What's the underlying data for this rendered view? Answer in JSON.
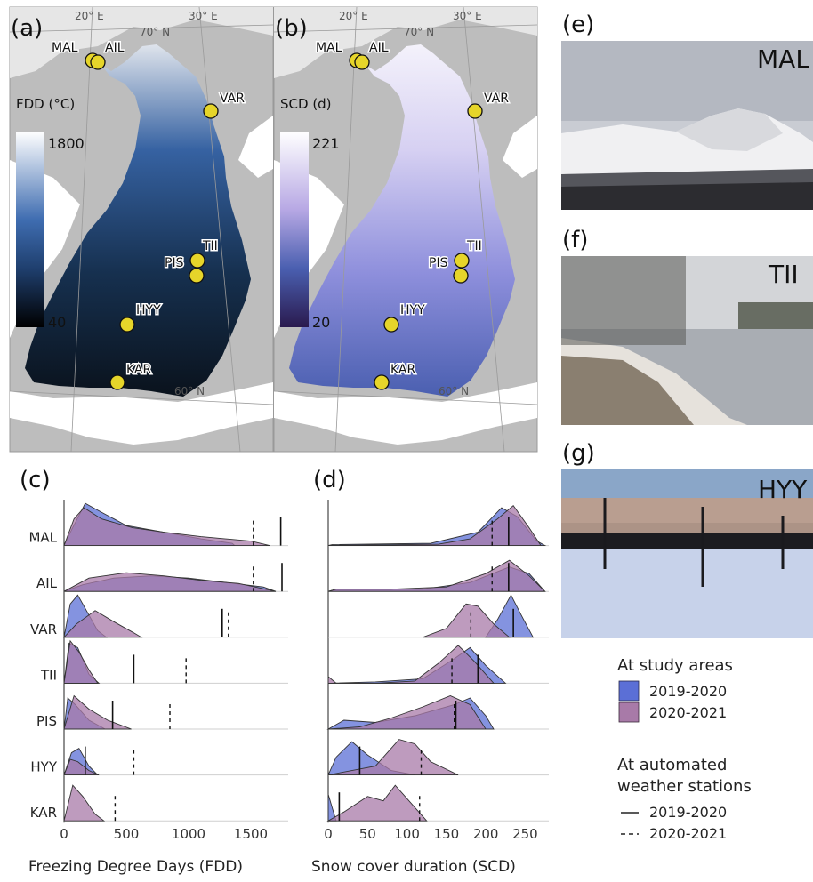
{
  "panels": {
    "a": "(a)",
    "b": "(b)",
    "c": "(c)",
    "d": "(d)",
    "e": "(e)",
    "f": "(f)",
    "g": "(g)"
  },
  "maps": {
    "lat_70": "70° N",
    "lat_60": "60° N",
    "lon_20": "20° E",
    "lon_30": "30° E",
    "fdd": {
      "title": "FDD (°C)",
      "max": "1800",
      "min": "40",
      "colors": [
        "#000000",
        "#1f3f6e",
        "#3f6db1",
        "#ffffff"
      ]
    },
    "scd": {
      "title": "SCD (d)",
      "max": "221",
      "min": "20",
      "colors": [
        "#2a1a4e",
        "#4a5fb0",
        "#b7a8e4",
        "#ffffff"
      ]
    },
    "sites": [
      "MAL",
      "AIL",
      "VAR",
      "TII",
      "PIS",
      "HYY",
      "KAR"
    ],
    "site_color": "#e6d52a",
    "land_color": "#bdbdbd",
    "sea_color": "#ffffff"
  },
  "photos": {
    "e": {
      "label": "MAL"
    },
    "f": {
      "label": "TII"
    },
    "g": {
      "label": "HYY"
    }
  },
  "legend": {
    "study_title": "At study areas",
    "study_items": [
      {
        "label": "2019-2020",
        "color": "#5b6fd6"
      },
      {
        "label": "2020-2021",
        "color": "#a87aa8"
      }
    ],
    "aws_title_1": "At automated",
    "aws_title_2": "weather stations",
    "aws_items": [
      {
        "label": "2019-2020",
        "dash": "solid"
      },
      {
        "label": "2020-2021",
        "dash": "dashed"
      }
    ]
  },
  "chart_data": [
    {
      "type": "area",
      "title": "",
      "xlabel": "Freezing Degree Days (FDD)",
      "xlim": [
        0,
        1800
      ],
      "xticks": [
        0,
        500,
        1000,
        1500
      ],
      "sites": [
        "MAL",
        "AIL",
        "VAR",
        "TII",
        "PIS",
        "HYY",
        "KAR"
      ],
      "series": [
        {
          "name": "2019-2020",
          "color": "#5b6fd6",
          "density": {
            "MAL": [
              [
                0,
                0
              ],
              [
                60,
                0.35
              ],
              [
                170,
                0.95
              ],
              [
                300,
                0.75
              ],
              [
                500,
                0.45
              ],
              [
                800,
                0.3
              ],
              [
                1100,
                0.15
              ],
              [
                1350,
                0.05
              ],
              [
                1370,
                0
              ]
            ],
            "AIL": [
              [
                0,
                0
              ],
              [
                150,
                0.15
              ],
              [
                400,
                0.3
              ],
              [
                700,
                0.35
              ],
              [
                1000,
                0.3
              ],
              [
                1300,
                0.2
              ],
              [
                1600,
                0.1
              ],
              [
                1700,
                0
              ]
            ],
            "VAR": [
              [
                0,
                0
              ],
              [
                50,
                0.75
              ],
              [
                110,
                0.95
              ],
              [
                180,
                0.6
              ],
              [
                270,
                0.15
              ],
              [
                340,
                0
              ]
            ],
            "TII": [
              [
                0,
                0
              ],
              [
                40,
                0.9
              ],
              [
                110,
                0.8
              ],
              [
                200,
                0.2
              ],
              [
                280,
                0
              ]
            ],
            "PIS": [
              [
                0,
                0
              ],
              [
                30,
                0.7
              ],
              [
                90,
                0.55
              ],
              [
                200,
                0.2
              ],
              [
                330,
                0
              ]
            ],
            "HYY": [
              [
                0,
                0
              ],
              [
                60,
                0.5
              ],
              [
                120,
                0.6
              ],
              [
                200,
                0.2
              ],
              [
                270,
                0
              ]
            ],
            "KAR": []
          }
        },
        {
          "name": "2020-2021",
          "color": "#a87aa8",
          "density": {
            "MAL": [
              [
                0,
                0
              ],
              [
                80,
                0.6
              ],
              [
                160,
                0.85
              ],
              [
                300,
                0.6
              ],
              [
                550,
                0.4
              ],
              [
                800,
                0.3
              ],
              [
                1100,
                0.2
              ],
              [
                1500,
                0.1
              ],
              [
                1650,
                0
              ]
            ],
            "AIL": [
              [
                0,
                0
              ],
              [
                200,
                0.3
              ],
              [
                500,
                0.42
              ],
              [
                800,
                0.35
              ],
              [
                1100,
                0.25
              ],
              [
                1400,
                0.18
              ],
              [
                1700,
                0
              ]
            ],
            "VAR": [
              [
                0,
                0
              ],
              [
                100,
                0.3
              ],
              [
                250,
                0.6
              ],
              [
                400,
                0.35
              ],
              [
                560,
                0.1
              ],
              [
                620,
                0
              ]
            ],
            "TII": [
              [
                0,
                0
              ],
              [
                50,
                0.95
              ],
              [
                120,
                0.7
              ],
              [
                200,
                0.3
              ],
              [
                270,
                0
              ]
            ],
            "PIS": [
              [
                0,
                0
              ],
              [
                80,
                0.75
              ],
              [
                200,
                0.45
              ],
              [
                350,
                0.2
              ],
              [
                540,
                0
              ]
            ],
            "HYY": [
              [
                0,
                0
              ],
              [
                50,
                0.35
              ],
              [
                110,
                0.3
              ],
              [
                200,
                0.1
              ],
              [
                280,
                0
              ]
            ],
            "KAR": [
              [
                0,
                0
              ],
              [
                70,
                0.8
              ],
              [
                150,
                0.55
              ],
              [
                250,
                0.15
              ],
              [
                320,
                0
              ]
            ]
          }
        }
      ],
      "station_values": {
        "2019-2020": {
          "MAL": 1740,
          "AIL": 1750,
          "VAR": 1270,
          "TII": 560,
          "PIS": 390,
          "HYY": 170,
          "KAR": null
        },
        "2020-2021": {
          "MAL": 1520,
          "AIL": 1520,
          "VAR": 1320,
          "TII": 980,
          "PIS": 850,
          "HYY": 560,
          "KAR": 410
        }
      }
    },
    {
      "type": "area",
      "title": "",
      "xlabel": "Snow cover duration (SCD)",
      "xlim": [
        0,
        280
      ],
      "xticks": [
        0,
        50,
        100,
        150,
        200,
        250
      ],
      "sites": [
        "MAL",
        "AIL",
        "VAR",
        "TII",
        "PIS",
        "HYY",
        "KAR"
      ],
      "series": [
        {
          "name": "2019-2020",
          "color": "#5b6fd6",
          "density": {
            "MAL": [
              [
                0,
                0
              ],
              [
                5,
                0.02
              ],
              [
                130,
                0.05
              ],
              [
                190,
                0.3
              ],
              [
                220,
                0.85
              ],
              [
                240,
                0.65
              ],
              [
                265,
                0.1
              ],
              [
                275,
                0
              ]
            ],
            "AIL": [
              [
                0,
                0
              ],
              [
                10,
                0.05
              ],
              [
                120,
                0.05
              ],
              [
                180,
                0.2
              ],
              [
                230,
                0.55
              ],
              [
                255,
                0.4
              ],
              [
                275,
                0
              ]
            ],
            "VAR": [
              [
                200,
                0
              ],
              [
                215,
                0.4
              ],
              [
                232,
                0.95
              ],
              [
                245,
                0.5
              ],
              [
                260,
                0
              ]
            ],
            "TII": [
              [
                0,
                0
              ],
              [
                60,
                0.03
              ],
              [
                120,
                0.1
              ],
              [
                160,
                0.55
              ],
              [
                180,
                0.8
              ],
              [
                200,
                0.4
              ],
              [
                225,
                0
              ]
            ],
            "PIS": [
              [
                0,
                0
              ],
              [
                20,
                0.2
              ],
              [
                60,
                0.15
              ],
              [
                110,
                0.3
              ],
              [
                160,
                0.55
              ],
              [
                180,
                0.7
              ],
              [
                200,
                0.3
              ],
              [
                210,
                0
              ]
            ],
            "HYY": [
              [
                0,
                0
              ],
              [
                10,
                0.4
              ],
              [
                30,
                0.75
              ],
              [
                50,
                0.45
              ],
              [
                80,
                0.1
              ],
              [
                110,
                0
              ]
            ],
            "KAR": [
              [
                0,
                0.6
              ],
              [
                5,
                0.3
              ],
              [
                10,
                0
              ]
            ]
          }
        },
        {
          "name": "2020-2021",
          "color": "#a87aa8",
          "density": {
            "MAL": [
              [
                0,
                0
              ],
              [
                140,
                0.03
              ],
              [
                180,
                0.15
              ],
              [
                215,
                0.6
              ],
              [
                235,
                0.9
              ],
              [
                255,
                0.4
              ],
              [
                270,
                0
              ]
            ],
            "AIL": [
              [
                0,
                0
              ],
              [
                10,
                0.05
              ],
              [
                80,
                0.05
              ],
              [
                150,
                0.1
              ],
              [
                200,
                0.4
              ],
              [
                230,
                0.7
              ],
              [
                255,
                0.35
              ],
              [
                275,
                0
              ]
            ],
            "VAR": [
              [
                120,
                0
              ],
              [
                150,
                0.2
              ],
              [
                175,
                0.75
              ],
              [
                190,
                0.7
              ],
              [
                210,
                0.3
              ],
              [
                230,
                0
              ]
            ],
            "TII": [
              [
                0,
                0.15
              ],
              [
                10,
                0
              ],
              [
                60,
                0
              ],
              [
                110,
                0.05
              ],
              [
                140,
                0.45
              ],
              [
                165,
                0.85
              ],
              [
                185,
                0.5
              ],
              [
                210,
                0
              ]
            ],
            "PIS": [
              [
                0,
                0
              ],
              [
                40,
                0.05
              ],
              [
                80,
                0.25
              ],
              [
                120,
                0.5
              ],
              [
                155,
                0.75
              ],
              [
                180,
                0.55
              ],
              [
                200,
                0
              ]
            ],
            "HYY": [
              [
                0,
                0
              ],
              [
                60,
                0.2
              ],
              [
                90,
                0.8
              ],
              [
                110,
                0.7
              ],
              [
                130,
                0.3
              ],
              [
                165,
                0
              ]
            ],
            "KAR": [
              [
                0,
                0
              ],
              [
                20,
                0.2
              ],
              [
                50,
                0.55
              ],
              [
                70,
                0.45
              ],
              [
                85,
                0.8
              ],
              [
                105,
                0.4
              ],
              [
                125,
                0
              ]
            ]
          }
        }
      ],
      "station_values": {
        "2019-2020": {
          "MAL": 229,
          "AIL": 229,
          "VAR": 235,
          "TII": 190,
          "PIS": 162,
          "HYY": 40,
          "KAR": 14
        },
        "2020-2021": {
          "MAL": 208,
          "AIL": 208,
          "VAR": 181,
          "TII": 157,
          "PIS": 160,
          "HYY": 118,
          "KAR": 116
        }
      }
    }
  ]
}
